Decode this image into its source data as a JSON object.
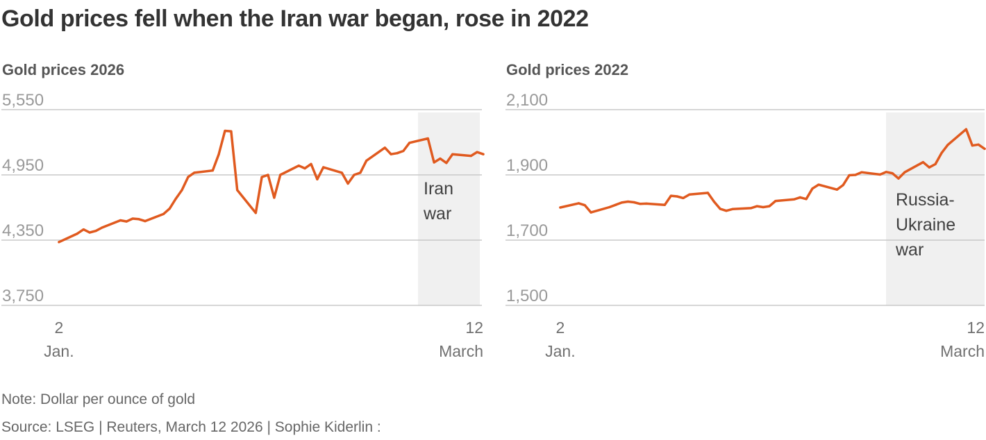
{
  "title": "Gold prices fell when the Iran war began, rose in 2022",
  "note": "Note: Dollar per ounce of gold",
  "source": "Source: LSEG | Reuters, March 12 2026 | Sophie Kiderlin :",
  "colors": {
    "line": "#e05a1f",
    "shade": "#f0f0f0",
    "grid": "#c8c8c8"
  },
  "chart_data": [
    {
      "type": "line",
      "title": "Gold prices 2026",
      "ylim": [
        3750,
        5550
      ],
      "yticks": [
        3750,
        4350,
        4950,
        5550
      ],
      "ytick_labels": [
        "3,750",
        "4,350",
        "4,950",
        "5,550"
      ],
      "xlim": [
        1,
        71
      ],
      "xticks": [
        {
          "x": 2,
          "top": "2",
          "bottom": "Jan."
        },
        {
          "x": 71,
          "top": "12",
          "bottom": "March"
        }
      ],
      "grid": true,
      "shaded": {
        "x_start": 60,
        "x_end": 71,
        "label": [
          "Iran",
          "war"
        ]
      },
      "series": [
        {
          "points": [
            [
              2,
              4332
            ],
            [
              5,
              4410
            ],
            [
              6,
              4448
            ],
            [
              7,
              4420
            ],
            [
              8,
              4435
            ],
            [
              9,
              4465
            ],
            [
              12,
              4532
            ],
            [
              13,
              4522
            ],
            [
              14,
              4548
            ],
            [
              15,
              4543
            ],
            [
              16,
              4525
            ],
            [
              19,
              4590
            ],
            [
              20,
              4640
            ],
            [
              21,
              4730
            ],
            [
              22,
              4810
            ],
            [
              23,
              4930
            ],
            [
              24,
              4970
            ],
            [
              27,
              4990
            ],
            [
              28,
              5140
            ],
            [
              29,
              5355
            ],
            [
              30,
              5350
            ],
            [
              31,
              4810
            ],
            [
              34,
              4600
            ],
            [
              35,
              4930
            ],
            [
              36,
              4950
            ],
            [
              37,
              4740
            ],
            [
              38,
              4950
            ],
            [
              41,
              5035
            ],
            [
              42,
              5010
            ],
            [
              43,
              5050
            ],
            [
              44,
              4910
            ],
            [
              45,
              5020
            ],
            [
              48,
              4970
            ],
            [
              49,
              4870
            ],
            [
              50,
              4950
            ],
            [
              51,
              4970
            ],
            [
              52,
              5080
            ],
            [
              55,
              5200
            ],
            [
              56,
              5140
            ],
            [
              57,
              5150
            ],
            [
              58,
              5170
            ],
            [
              59,
              5245
            ],
            [
              62,
              5285
            ],
            [
              63,
              5065
            ],
            [
              64,
              5100
            ],
            [
              65,
              5060
            ],
            [
              66,
              5140
            ],
            [
              69,
              5125
            ],
            [
              70,
              5160
            ],
            [
              71,
              5140
            ]
          ]
        }
      ]
    },
    {
      "type": "line",
      "title": "Gold prices 2022",
      "ylim": [
        1500,
        2100
      ],
      "yticks": [
        1500,
        1700,
        1900,
        2100
      ],
      "ytick_labels": [
        "1,500",
        "1,700",
        "1,900",
        "2,100"
      ],
      "xlim": [
        1,
        71
      ],
      "xticks": [
        {
          "x": 2,
          "top": "2",
          "bottom": "Jan."
        },
        {
          "x": 71,
          "top": "12",
          "bottom": "March"
        }
      ],
      "grid": true,
      "shaded": {
        "x_start": 55,
        "x_end": 71,
        "label": [
          "Russia-",
          "Ukraine",
          "war"
        ]
      },
      "series": [
        {
          "points": [
            [
              2,
              1800
            ],
            [
              5,
              1813
            ],
            [
              6,
              1807
            ],
            [
              7,
              1785
            ],
            [
              10,
              1801
            ],
            [
              11,
              1808
            ],
            [
              12,
              1815
            ],
            [
              13,
              1818
            ],
            [
              14,
              1816
            ],
            [
              15,
              1811
            ],
            [
              16,
              1812
            ],
            [
              19,
              1808
            ],
            [
              20,
              1836
            ],
            [
              21,
              1834
            ],
            [
              22,
              1829
            ],
            [
              23,
              1840
            ],
            [
              26,
              1845
            ],
            [
              27,
              1818
            ],
            [
              28,
              1796
            ],
            [
              29,
              1790
            ],
            [
              30,
              1795
            ],
            [
              33,
              1798
            ],
            [
              34,
              1804
            ],
            [
              35,
              1801
            ],
            [
              36,
              1804
            ],
            [
              37,
              1820
            ],
            [
              40,
              1825
            ],
            [
              41,
              1831
            ],
            [
              42,
              1826
            ],
            [
              43,
              1858
            ],
            [
              44,
              1870
            ],
            [
              47,
              1855
            ],
            [
              48,
              1869
            ],
            [
              49,
              1899
            ],
            [
              50,
              1900
            ],
            [
              51,
              1908
            ],
            [
              54,
              1901
            ],
            [
              55,
              1909
            ],
            [
              56,
              1905
            ],
            [
              57,
              1889
            ],
            [
              58,
              1908
            ],
            [
              61,
              1939
            ],
            [
              62,
              1923
            ],
            [
              63,
              1933
            ],
            [
              64,
              1967
            ],
            [
              65,
              1992
            ],
            [
              68,
              2040
            ],
            [
              69,
              1990
            ],
            [
              70,
              1993
            ],
            [
              71,
              1980
            ]
          ]
        }
      ]
    }
  ]
}
